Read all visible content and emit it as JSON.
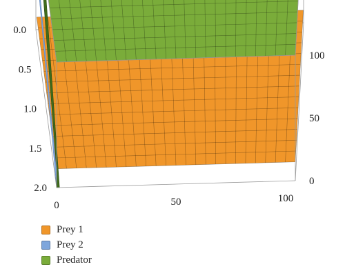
{
  "chart_data": {
    "type": "surface3d",
    "title": "",
    "x_axis": {
      "label": "",
      "range": [
        0,
        100
      ],
      "ticks": [
        "0",
        "50",
        "100"
      ]
    },
    "y_axis": {
      "label": "",
      "range": [
        0,
        2
      ],
      "ticks": [
        "0.0",
        "0.5",
        "1.0",
        "1.5",
        "2.0"
      ]
    },
    "z_axis": {
      "label": "",
      "range": [
        0,
        100
      ],
      "ticks": [
        "0",
        "50",
        "100"
      ]
    },
    "legend_placement": "bottom-left",
    "series": [
      {
        "name": "Prey 1",
        "color": "#f0962a",
        "steady_value": 15,
        "peak_value": 0
      },
      {
        "name": "Prey 2",
        "color": "#7ea6dc",
        "steady_value": 0,
        "peak_value": 0
      },
      {
        "name": "Predator",
        "color": "#7aac3a",
        "steady_value": 100,
        "peak_value": 100
      }
    ]
  }
}
